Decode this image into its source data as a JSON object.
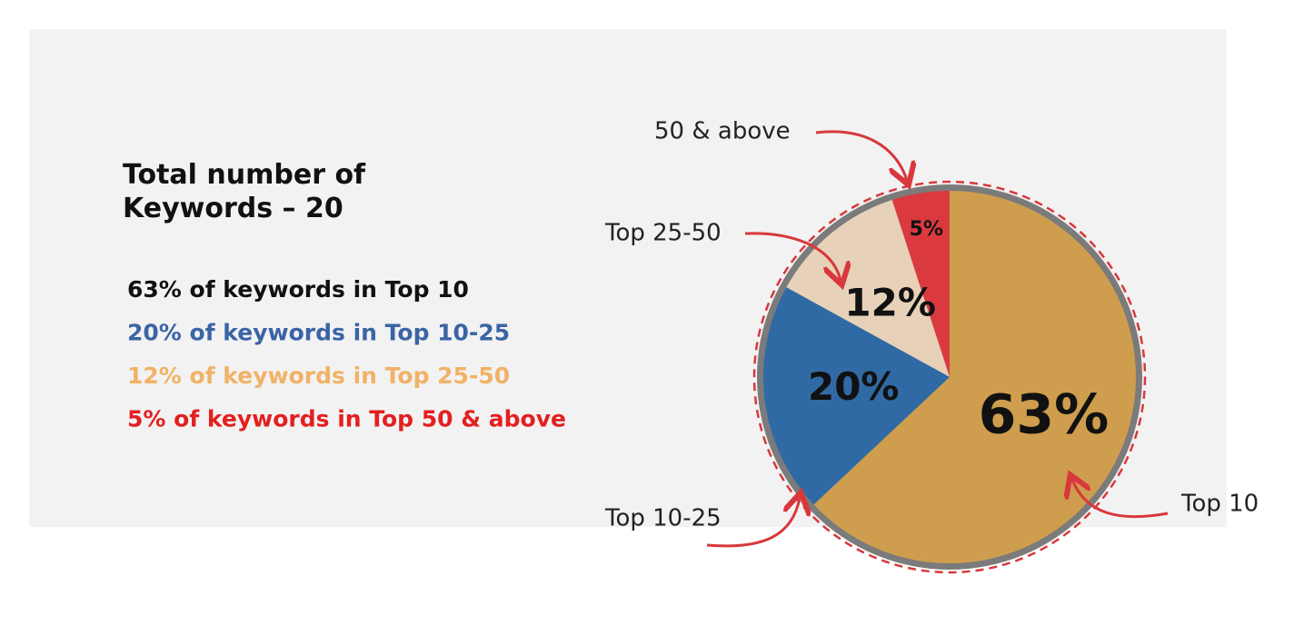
{
  "chart_data": {
    "type": "pie",
    "title": "Total number of Keywords – 20",
    "categories": [
      "Top 10",
      "Top 10-25",
      "Top 25-50",
      "50 & above"
    ],
    "values": [
      63,
      20,
      12,
      5
    ],
    "value_labels": [
      "63%",
      "20%",
      "12%",
      "5%"
    ],
    "colors": [
      "#d3a04c",
      "#2c69a6",
      "#f3dcc0",
      "#e0363d"
    ],
    "annotations": [
      "63% of keywords in Top 10",
      "20% of keywords in Top 10-25",
      "12% of keywords in Top 25-50",
      "5% of keywords in Top 50 & above"
    ],
    "annotation_colors": [
      "#111111",
      "#3a64a6",
      "#f1b266",
      "#e3201f"
    ]
  }
}
